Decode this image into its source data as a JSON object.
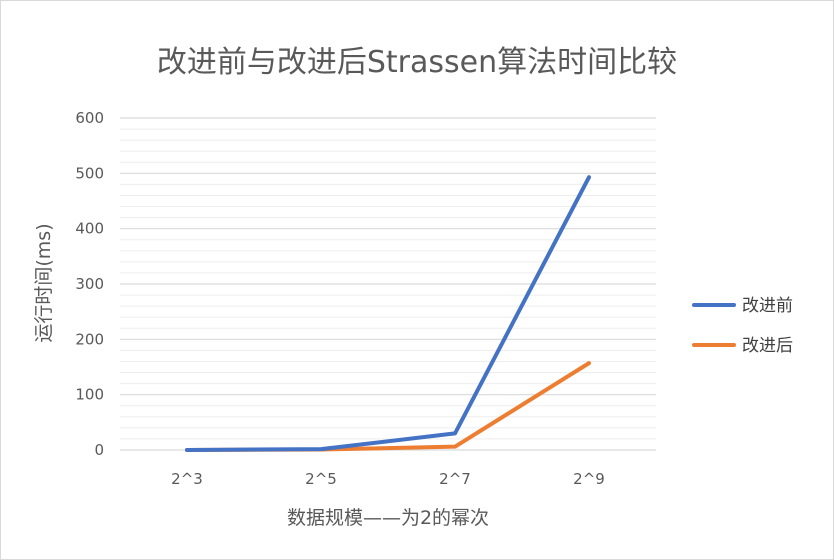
{
  "chart_data": {
    "type": "line",
    "title": "改进前与改进后Strassen算法时间比较",
    "xlabel": "数据规模——为2的幂次",
    "ylabel": "运行时间(ms)",
    "categories": [
      "2^3",
      "2^5",
      "2^7",
      "2^9"
    ],
    "ylim": [
      0,
      600
    ],
    "yticks": [
      "0",
      "100",
      "200",
      "300",
      "400",
      "500",
      "600"
    ],
    "grid": true,
    "legend_position": "right",
    "series": [
      {
        "name": "改进前",
        "color": "#4472c4",
        "values": [
          0.1,
          1.5,
          30,
          493
        ]
      },
      {
        "name": "改进后",
        "color": "#ed7d31",
        "values": [
          0.1,
          0.8,
          6,
          157
        ]
      }
    ]
  }
}
